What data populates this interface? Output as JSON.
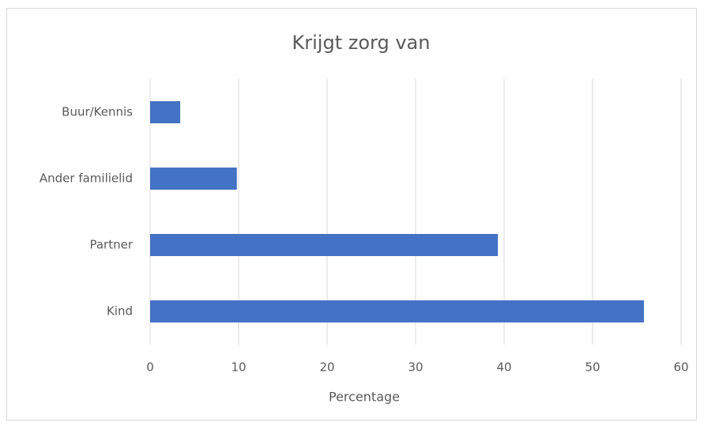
{
  "chart_data": {
    "type": "bar",
    "orientation": "horizontal",
    "title": "Krijgt zorg van",
    "categories": [
      "Kind",
      "Partner",
      "Ander familielid",
      "Buur/Kennis"
    ],
    "values": [
      55.8,
      39.3,
      9.8,
      3.4
    ],
    "color": "#4472c4",
    "xlabel": "Percentage",
    "xlim": [
      0,
      60
    ],
    "xticks": [
      0,
      10,
      20,
      30,
      40,
      50,
      60
    ],
    "grid": true
  }
}
